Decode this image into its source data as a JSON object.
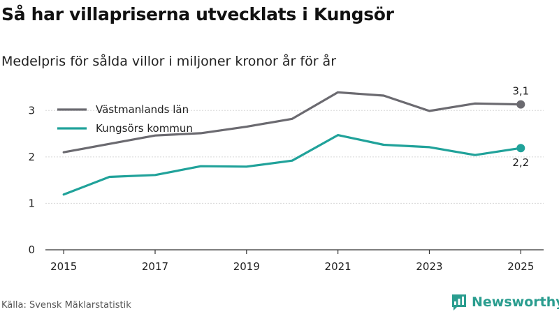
{
  "title": "Så har villapriserna utvecklats i Kungsör",
  "subtitle": "Medelpris för sålda villor i miljoner kronor år för år",
  "source": "Källa: Svensk Mäklarstatistik",
  "brand": {
    "name": "Newsworthy",
    "icon": "newsworthy-logo-icon",
    "color": "#2a9d8f"
  },
  "chart_data": {
    "type": "line",
    "title": "Så har villapriserna utvecklats i Kungsör",
    "xlabel": "",
    "ylabel": "",
    "x": [
      2015,
      2016,
      2017,
      2018,
      2019,
      2020,
      2021,
      2022,
      2023,
      2024,
      2025
    ],
    "x_ticks": [
      "2015",
      "2017",
      "2019",
      "2021",
      "2023",
      "2025"
    ],
    "y_ticks": [
      "0",
      "1",
      "2",
      "3"
    ],
    "ylim": [
      0,
      3.5
    ],
    "xlim": [
      2014.6,
      2025.5
    ],
    "grid": true,
    "legend_position": "top-left",
    "series": [
      {
        "name": "Västmanlands län",
        "color": "#6b6a70",
        "values": [
          2.1,
          2.28,
          2.46,
          2.51,
          2.65,
          2.82,
          3.39,
          3.32,
          2.99,
          3.15,
          3.13
        ],
        "end_label": "3,1"
      },
      {
        "name": "Kungsörs kommun",
        "color": "#20a29a",
        "values": [
          1.19,
          1.57,
          1.61,
          1.8,
          1.79,
          1.92,
          2.47,
          2.26,
          2.21,
          2.04,
          2.19
        ],
        "end_label": "2,2"
      }
    ]
  }
}
